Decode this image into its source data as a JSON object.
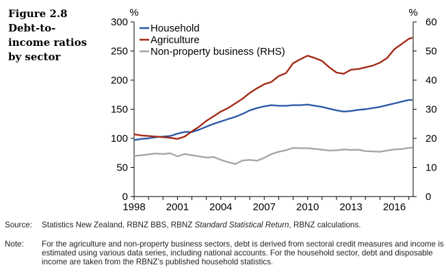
{
  "figure": {
    "label": "Figure 2.8",
    "title_lines": [
      "Debt-to-",
      "income ratios",
      "by sector"
    ]
  },
  "chart_data": {
    "type": "line",
    "left_axis": {
      "unit": "%",
      "ylim": [
        0,
        300
      ],
      "ticks": [
        "0",
        "50",
        "100",
        "150",
        "200",
        "250",
        "300"
      ]
    },
    "right_axis": {
      "unit": "%",
      "ylim": [
        0,
        60
      ],
      "ticks": [
        "0",
        "10",
        "20",
        "30",
        "40",
        "50",
        "60"
      ]
    },
    "xlim": [
      1998,
      2017.3
    ],
    "x_ticks": [
      "1998",
      "2001",
      "2004",
      "2007",
      "2010",
      "2013",
      "2016"
    ],
    "grid": false,
    "legend": "top-left",
    "series": [
      {
        "name": "Household",
        "axis": "left",
        "color": "#2e5aa8",
        "x": [
          1998,
          1998.5,
          1999,
          1999.5,
          2000,
          2000.5,
          2001,
          2001.5,
          2002,
          2002.5,
          2003,
          2003.5,
          2004,
          2004.5,
          2005,
          2005.5,
          2006,
          2006.5,
          2007,
          2007.5,
          2008,
          2008.5,
          2009,
          2009.5,
          2010,
          2010.5,
          2011,
          2011.5,
          2012,
          2012.5,
          2013,
          2013.5,
          2014,
          2014.5,
          2015,
          2015.5,
          2016,
          2016.5,
          2017,
          2017.25
        ],
        "values": [
          97,
          99,
          100,
          102,
          103,
          104,
          108,
          111,
          111,
          115,
          120,
          125,
          129,
          133,
          137,
          142,
          148,
          152,
          155,
          157,
          156,
          156,
          157,
          157,
          158,
          156,
          154,
          151,
          148,
          146,
          147,
          149,
          150,
          152,
          154,
          157,
          160,
          163,
          166,
          166
        ]
      },
      {
        "name": "Agriculture",
        "axis": "left",
        "color": "#a32a16",
        "x": [
          1998,
          1998.5,
          1999,
          1999.5,
          2000,
          2000.5,
          2001,
          2001.5,
          2002,
          2002.5,
          2003,
          2003.5,
          2004,
          2004.5,
          2005,
          2005.5,
          2006,
          2006.5,
          2007,
          2007.5,
          2008,
          2008.5,
          2009,
          2009.5,
          2010,
          2010.5,
          2011,
          2011.5,
          2012,
          2012.5,
          2013,
          2013.5,
          2014,
          2014.5,
          2015,
          2015.5,
          2016,
          2016.5,
          2017,
          2017.25
        ],
        "values": [
          107,
          105,
          104,
          103,
          102,
          101,
          99,
          103,
          112,
          120,
          130,
          138,
          146,
          152,
          160,
          168,
          178,
          186,
          193,
          197,
          207,
          212,
          229,
          236,
          242,
          238,
          233,
          222,
          213,
          211,
          218,
          219,
          222,
          225,
          230,
          238,
          253,
          262,
          271,
          273
        ]
      },
      {
        "name": "Non-property business (RHS)",
        "axis": "right",
        "color": "#a6a6a6",
        "x": [
          1998,
          1998.5,
          1999,
          1999.5,
          2000,
          2000.5,
          2001,
          2001.5,
          2002,
          2002.5,
          2003,
          2003.5,
          2004,
          2004.5,
          2005,
          2005.5,
          2006,
          2006.5,
          2007,
          2007.5,
          2008,
          2008.5,
          2009,
          2009.5,
          2010,
          2010.5,
          2011,
          2011.5,
          2012,
          2012.5,
          2013,
          2013.5,
          2014,
          2014.5,
          2015,
          2015.5,
          2016,
          2016.5,
          2017,
          2017.25
        ],
        "values": [
          14,
          14.2,
          14.5,
          14.8,
          14.6,
          14.9,
          13.8,
          14.6,
          14.2,
          13.8,
          13.4,
          13.6,
          12.6,
          11.8,
          11.2,
          12.4,
          12.6,
          12.3,
          13.3,
          14.6,
          15.4,
          15.9,
          16.7,
          16.6,
          16.6,
          16.4,
          16.1,
          15.8,
          15.9,
          16.2,
          16.0,
          16.1,
          15.6,
          15.5,
          15.4,
          15.8,
          16.2,
          16.3,
          16.7,
          16.8
        ]
      }
    ]
  },
  "footer": {
    "source_label": "Source:",
    "source_text_a": "Statistics New Zealand, RBNZ BBS, RBNZ ",
    "source_text_italic": "Standard Statistical Return",
    "source_text_b": ", RBNZ calculations.",
    "note_label": "Note:",
    "note_text": "For the agriculture and non-property business sectors, debt is derived from sectoral credit measures and income is estimated using various data series, including national accounts. For the household sector, debt and disposable income are taken from the RBNZ’s published household statistics."
  }
}
